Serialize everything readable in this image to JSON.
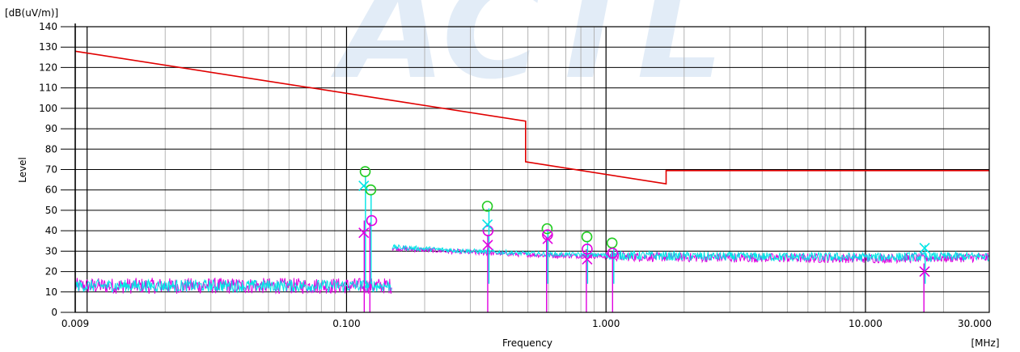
{
  "chart_data": {
    "type": "line",
    "title": "",
    "xlabel": "Frequency",
    "ylabel": "Level",
    "y_unit": "[dB(uV/m)]",
    "x_unit": "[MHz]",
    "x_scale": "log",
    "xlim": [
      0.009,
      30
    ],
    "ylim": [
      0,
      140
    ],
    "grid": true,
    "watermark": "ACTL",
    "x_tick_labels": [
      {
        "value": 0.009,
        "label": "0.009"
      },
      {
        "value": 0.1,
        "label": "0.100"
      },
      {
        "value": 1,
        "label": "1.000"
      },
      {
        "value": 10,
        "label": "10.000"
      },
      {
        "value": 30,
        "label": "30.000"
      }
    ],
    "y_ticks": [
      0,
      10,
      20,
      30,
      40,
      50,
      60,
      70,
      80,
      90,
      100,
      110,
      120,
      130,
      140
    ],
    "colors": {
      "limit": "#e00000",
      "peak_trace": "#00e5e5",
      "avg_trace": "#e000e0",
      "qp_marker": "#22cc22",
      "avg_marker": "#e000e0",
      "peak_marker": "#00e5e5",
      "grid_gray": "#b4b4b4",
      "grid_dark": "#000000"
    },
    "series": [
      {
        "role": "limit",
        "x": [
          0.009,
          0.49,
          0.49,
          1.705,
          1.705,
          30
        ],
        "y": [
          128,
          93.7,
          73.8,
          63,
          69.5,
          69.5
        ]
      }
    ],
    "traces": {
      "low_band": {
        "x_range": [
          0.009,
          0.15
        ],
        "base": 13,
        "spread": 3
      },
      "high_band": {
        "x_range": [
          0.15,
          30
        ],
        "levels": [
          {
            "x": 0.15,
            "y": 32
          },
          {
            "x": 0.3,
            "y": 30
          },
          {
            "x": 0.6,
            "y": 28.5
          },
          {
            "x": 2,
            "y": 27.5
          },
          {
            "x": 10,
            "y": 27
          },
          {
            "x": 30,
            "y": 27.5
          }
        ]
      },
      "spikes": [
        {
          "x": 0.117,
          "peak": 67,
          "avg": 45
        },
        {
          "x": 0.123,
          "peak": 58,
          "avg": 44
        },
        {
          "x": 0.35,
          "peak": 51,
          "avg": 38
        },
        {
          "x": 0.59,
          "peak": 40,
          "avg": 37
        },
        {
          "x": 0.84,
          "peak": 35,
          "avg": 31
        },
        {
          "x": 1.06,
          "peak": 31,
          "avg": 30
        },
        {
          "x": 16.8,
          "peak": 33,
          "avg": 24
        }
      ]
    },
    "markers": {
      "qp_circles": [
        {
          "x": 0.118,
          "y": 69
        },
        {
          "x": 0.124,
          "y": 60
        },
        {
          "x": 0.349,
          "y": 52
        },
        {
          "x": 0.593,
          "y": 41
        },
        {
          "x": 0.844,
          "y": 37
        },
        {
          "x": 1.055,
          "y": 34
        }
      ],
      "avg_circles": [
        {
          "x": 0.125,
          "y": 45
        },
        {
          "x": 0.351,
          "y": 40
        },
        {
          "x": 0.595,
          "y": 38
        },
        {
          "x": 0.846,
          "y": 31
        },
        {
          "x": 1.06,
          "y": 29
        }
      ],
      "peak_crosses": [
        {
          "x": 0.1165,
          "y": 62
        },
        {
          "x": 0.349,
          "y": 43
        },
        {
          "x": 16.9,
          "y": 31.5
        }
      ],
      "avg_crosses": [
        {
          "x": 0.1165,
          "y": 39
        },
        {
          "x": 0.35,
          "y": 33
        },
        {
          "x": 0.596,
          "y": 36
        },
        {
          "x": 0.846,
          "y": 26
        },
        {
          "x": 16.9,
          "y": 20
        }
      ]
    }
  }
}
